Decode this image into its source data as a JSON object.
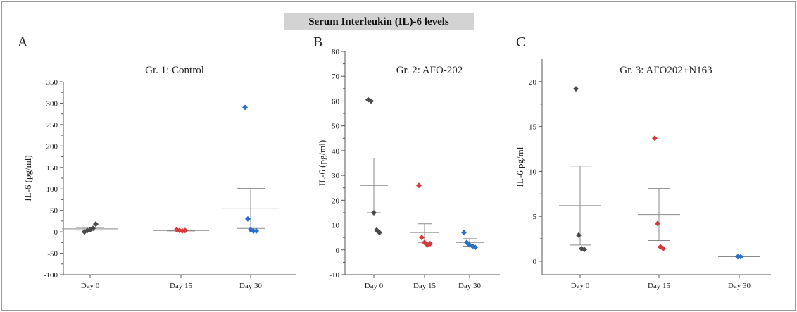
{
  "figure_title": "Serum Interleukin (IL)-6 levels",
  "colors": {
    "day0": "#4a4a4a",
    "day15": "#d9383a",
    "day30": "#2a6fc9",
    "axis": "#555555"
  },
  "chart_data": [
    {
      "type": "scatter",
      "panel_letter": "A",
      "title": "Gr. 1: Control",
      "xlabel": "",
      "ylabel": "IL-6 (pg/ml)",
      "categories": [
        "Day 0",
        "Day 15",
        "Day 30"
      ],
      "ylim": [
        -100,
        350
      ],
      "yticks": [
        -100,
        -50,
        0,
        50,
        100,
        150,
        200,
        250,
        300,
        350
      ],
      "grid": false,
      "groups": [
        {
          "category": "Day 0",
          "points": [
            0,
            3,
            5,
            8,
            18
          ],
          "mean": 7,
          "upper": 10,
          "lower": 4
        },
        {
          "category": "Day 15",
          "points": [
            5,
            3,
            2,
            3
          ],
          "mean": 3,
          "upper": 4,
          "lower": 2
        },
        {
          "category": "Day 30",
          "points": [
            290,
            30,
            5,
            2,
            2
          ],
          "mean": 55,
          "upper": 101,
          "lower": 8
        }
      ]
    },
    {
      "type": "scatter",
      "panel_letter": "B",
      "title": "Gr. 2: AFO-202",
      "xlabel": "",
      "ylabel": "IL-6 (pg/ml)",
      "categories": [
        "Day 0",
        "Day 15",
        "Day 30"
      ],
      "ylim": [
        -10,
        80
      ],
      "yticks": [
        -10,
        0,
        10,
        20,
        30,
        40,
        50,
        60,
        70,
        80
      ],
      "grid": false,
      "groups": [
        {
          "category": "Day 0",
          "points": [
            60.5,
            60,
            15,
            8,
            7
          ],
          "mean": 26,
          "upper": 37,
          "lower": 15
        },
        {
          "category": "Day 15",
          "points": [
            26,
            5,
            3,
            2,
            2.5
          ],
          "mean": 7,
          "upper": 10.5,
          "lower": 3
        },
        {
          "category": "Day 30",
          "points": [
            7,
            3,
            2,
            1.5,
            1
          ],
          "mean": 3,
          "upper": 4.5,
          "lower": 1.5
        }
      ]
    },
    {
      "type": "scatter",
      "panel_letter": "C",
      "title": "Gr. 3: AFO202+N163",
      "xlabel": "",
      "ylabel": "IL-6 pg/ml",
      "categories": [
        "Day 0",
        "Day 15",
        "Day 30"
      ],
      "ylim": [
        -1.5,
        22.5
      ],
      "yticks": [
        0,
        5,
        10,
        15,
        20
      ],
      "grid": false,
      "groups": [
        {
          "category": "Day 0",
          "points": [
            19.2,
            2.9,
            1.4,
            1.3
          ],
          "mean": 6.2,
          "upper": 10.6,
          "lower": 1.8
        },
        {
          "category": "Day 15",
          "points": [
            13.7,
            4.2,
            1.6,
            1.4
          ],
          "mean": 5.2,
          "upper": 8.1,
          "lower": 2.3
        },
        {
          "category": "Day 30",
          "points": [
            0.5,
            0.5
          ],
          "mean": 0.5,
          "upper": 0.5,
          "lower": 0.5
        }
      ]
    }
  ]
}
